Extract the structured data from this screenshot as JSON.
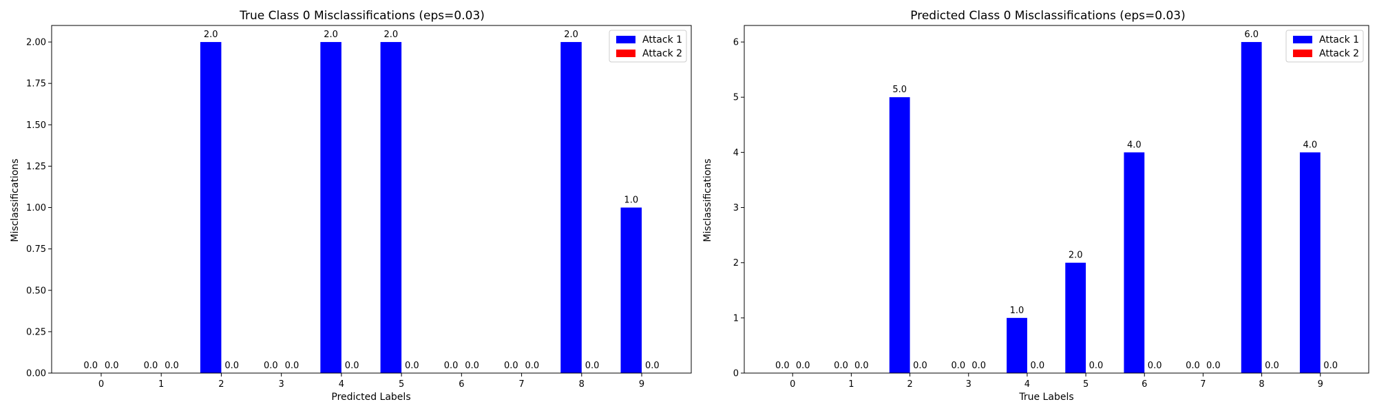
{
  "chart_data": [
    {
      "type": "bar",
      "title": "True Class 0 Misclassifications (eps=0.03)",
      "xlabel": "Predicted Labels",
      "ylabel": "Misclassifications",
      "categories": [
        "0",
        "1",
        "2",
        "3",
        "4",
        "5",
        "6",
        "7",
        "8",
        "9"
      ],
      "series": [
        {
          "name": "Attack 1",
          "color": "#0000ff",
          "values": [
            0,
            0,
            2,
            0,
            2,
            2,
            0,
            0,
            2,
            1
          ]
        },
        {
          "name": "Attack 2",
          "color": "#ff0000",
          "values": [
            0,
            0,
            0,
            0,
            0,
            0,
            0,
            0,
            0,
            0
          ]
        }
      ],
      "ylim": [
        0,
        2.1
      ],
      "yticks": [
        "0.00",
        "0.25",
        "0.50",
        "0.75",
        "1.00",
        "1.25",
        "1.50",
        "1.75",
        "2.00"
      ],
      "legend": "top-right",
      "grid": false
    },
    {
      "type": "bar",
      "title": "Predicted Class 0 Misclassifications (eps=0.03)",
      "xlabel": "True Labels",
      "ylabel": "Misclassifications",
      "categories": [
        "0",
        "1",
        "2",
        "3",
        "4",
        "5",
        "6",
        "7",
        "8",
        "9"
      ],
      "series": [
        {
          "name": "Attack 1",
          "color": "#0000ff",
          "values": [
            0,
            0,
            5,
            0,
            1,
            2,
            4,
            0,
            6,
            4
          ]
        },
        {
          "name": "Attack 2",
          "color": "#ff0000",
          "values": [
            0,
            0,
            0,
            0,
            0,
            0,
            0,
            0,
            0,
            0
          ]
        }
      ],
      "ylim": [
        0,
        6.3
      ],
      "yticks": [
        "0",
        "1",
        "2",
        "3",
        "4",
        "5",
        "6"
      ],
      "legend": "top-right",
      "grid": false
    }
  ]
}
